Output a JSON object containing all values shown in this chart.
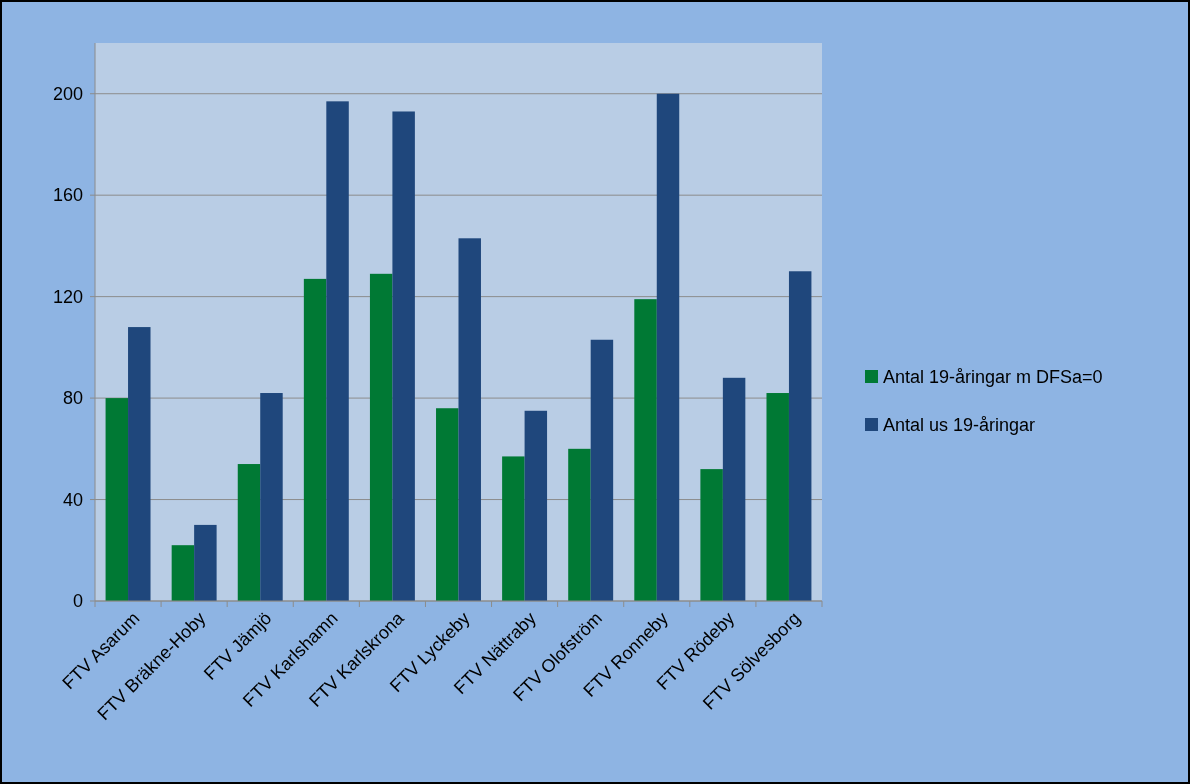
{
  "chart_data": {
    "type": "bar",
    "categories": [
      "FTV Asarum",
      "FTV Bräkne-Hoby",
      "FTV Jämjö",
      "FTV Karlshamn",
      "FTV Karlskrona",
      "FTV Lyckeby",
      "FTV Nättraby",
      "FTV Olofström",
      "FTV Ronneby",
      "FTV Rödeby",
      "FTV Sölvesborg"
    ],
    "series": [
      {
        "name": "Antal 19-åringar m DFSa=0",
        "color": "#007934",
        "values": [
          80,
          22,
          54,
          127,
          129,
          76,
          57,
          60,
          119,
          52,
          82
        ]
      },
      {
        "name": "Antal us 19-åringar",
        "color": "#1f477c",
        "values": [
          108,
          30,
          82,
          197,
          193,
          143,
          75,
          103,
          200,
          88,
          130
        ]
      }
    ],
    "ylim": [
      0,
      220
    ],
    "yticks": [
      0,
      40,
      80,
      120,
      160,
      200
    ],
    "grid": "y",
    "legend": "right"
  }
}
